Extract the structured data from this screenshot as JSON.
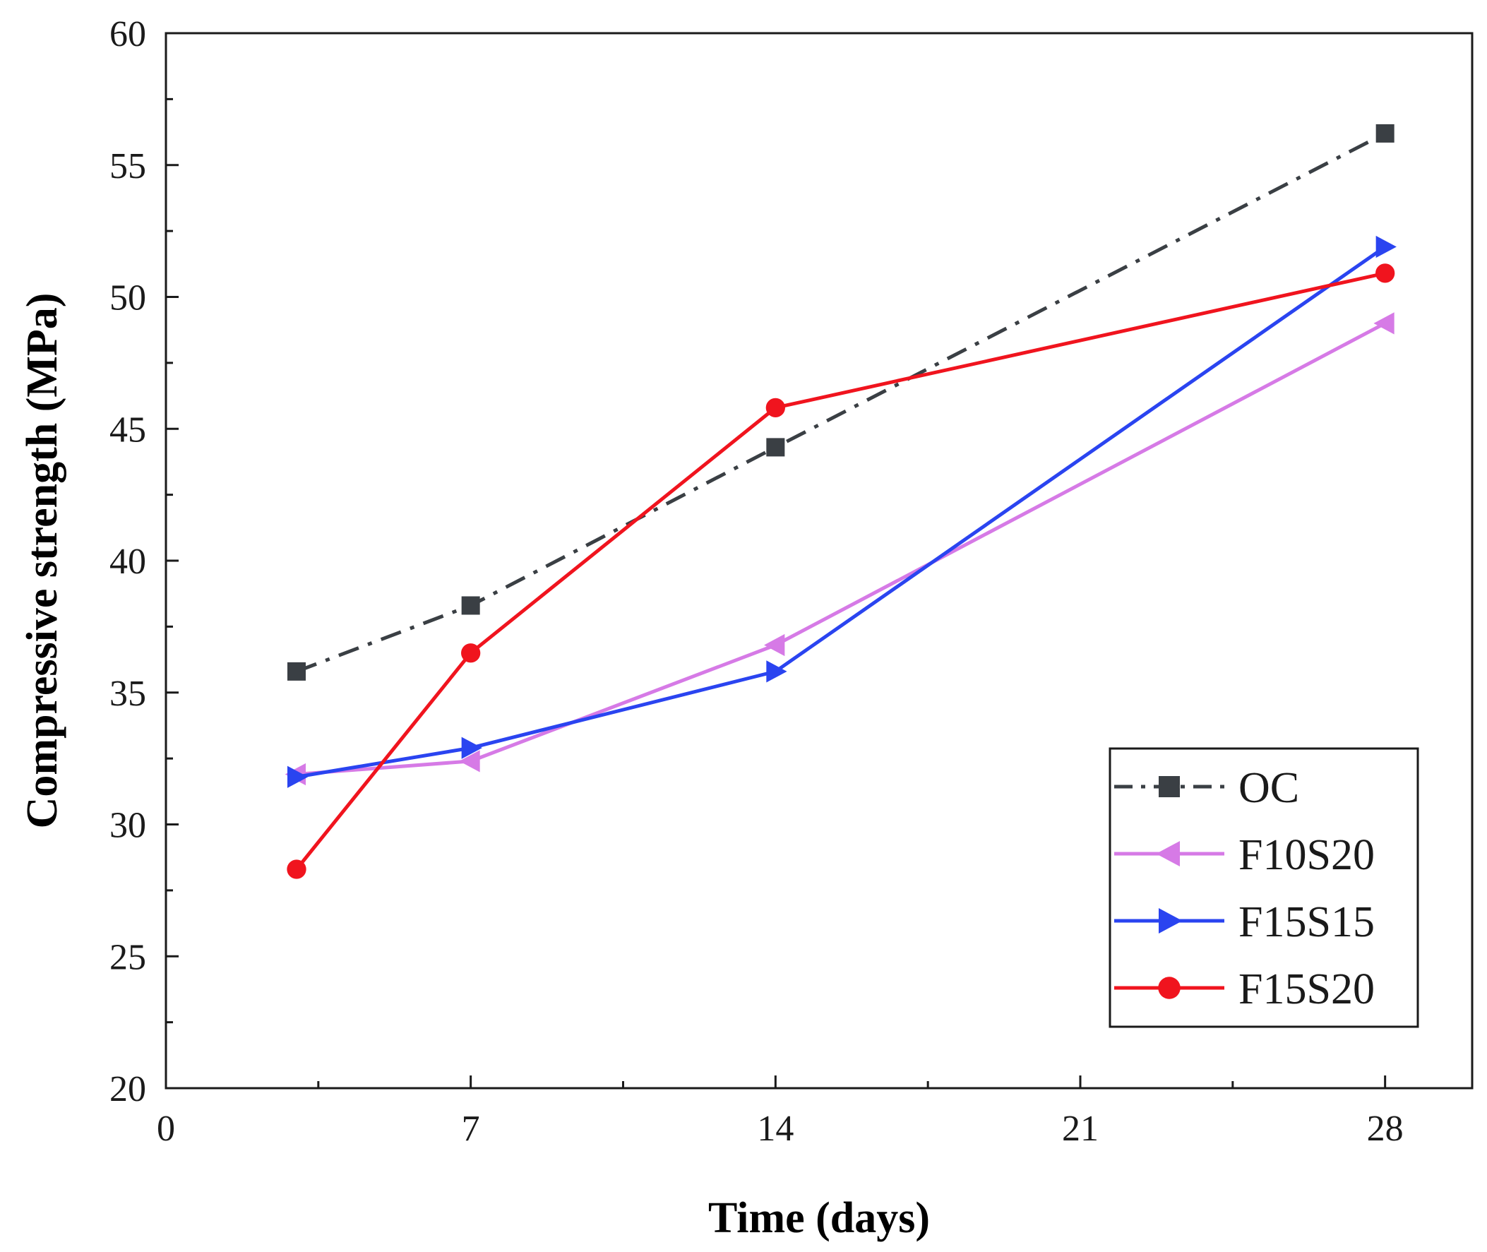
{
  "chart_data": {
    "type": "line",
    "title": "",
    "xlabel": "Time (days)",
    "ylabel": "Compressive strength (MPa)",
    "xlim": [
      0,
      30
    ],
    "ylim": [
      20,
      60
    ],
    "xticks": [
      0,
      7,
      14,
      21,
      28
    ],
    "yticks": [
      20,
      25,
      30,
      35,
      40,
      45,
      50,
      55,
      60
    ],
    "x": [
      3,
      7,
      14,
      28
    ],
    "legend_position": "bottom-right",
    "series": [
      {
        "name": "OC",
        "values": [
          35.8,
          38.3,
          44.3,
          56.2
        ],
        "color": "#3a3f44",
        "marker": "square",
        "dash": "dash-dot"
      },
      {
        "name": "F10S20",
        "values": [
          31.9,
          32.4,
          36.8,
          49.0
        ],
        "color": "#d67ae6",
        "marker": "triangle-left",
        "dash": "solid"
      },
      {
        "name": "F15S15",
        "values": [
          31.8,
          32.9,
          35.8,
          51.9
        ],
        "color": "#2a44f0",
        "marker": "triangle-right",
        "dash": "solid"
      },
      {
        "name": "F15S20",
        "values": [
          28.3,
          36.5,
          45.8,
          50.9
        ],
        "color": "#f0141e",
        "marker": "circle",
        "dash": "solid"
      }
    ]
  }
}
